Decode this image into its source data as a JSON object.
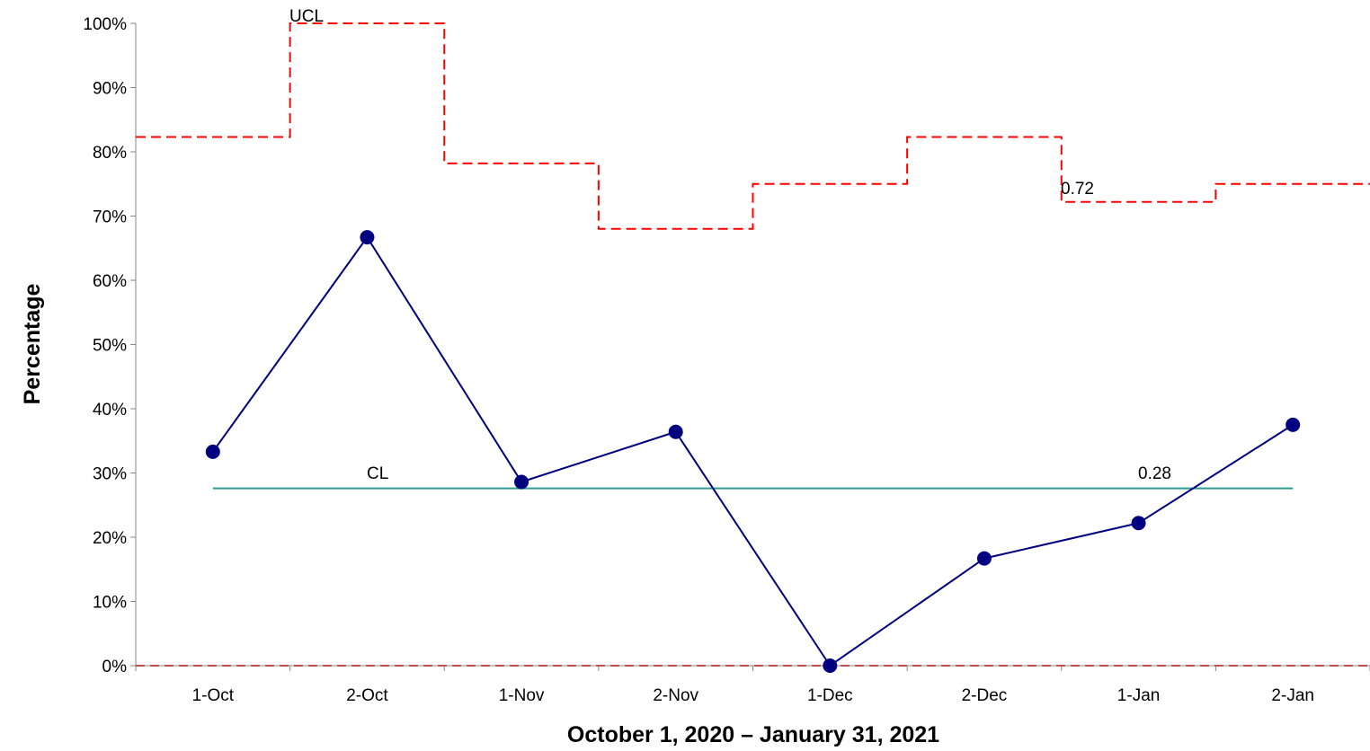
{
  "chart_data": {
    "type": "line",
    "title": "",
    "xlabel": "October 1, 2020 – January 31, 2021",
    "ylabel": "Percentage",
    "categories": [
      "1-Oct",
      "2-Oct",
      "1-Nov",
      "2-Nov",
      "1-Dec",
      "2-Dec",
      "1-Jan",
      "2-Jan"
    ],
    "ylim": [
      0,
      1
    ],
    "yticks": [
      "0%",
      "10%",
      "20%",
      "30%",
      "40%",
      "50%",
      "60%",
      "70%",
      "80%",
      "90%",
      "100%"
    ],
    "series": [
      {
        "role": "data",
        "values": [
          0.333,
          0.667,
          0.286,
          0.364,
          0.0,
          0.167,
          0.222,
          0.375
        ],
        "color": "#000080"
      },
      {
        "role": "ucl",
        "values": [
          0.823,
          1.0,
          0.782,
          0.68,
          0.75,
          0.823,
          0.722,
          0.75
        ],
        "color": "#ff0000"
      },
      {
        "role": "cl",
        "values": [
          0.276,
          0.276,
          0.276,
          0.276,
          0.276,
          0.276,
          0.276,
          0.276
        ],
        "color": "#2a9d8f"
      },
      {
        "role": "lcl",
        "values": [
          0,
          0,
          0,
          0,
          0,
          0,
          0,
          0
        ],
        "color": "#c0504d"
      }
    ],
    "annotations": {
      "ucl_label": "UCL",
      "ucl_value": "0.72",
      "cl_label": "CL",
      "cl_value": "0.28"
    },
    "grid": false,
    "legend": "none"
  }
}
